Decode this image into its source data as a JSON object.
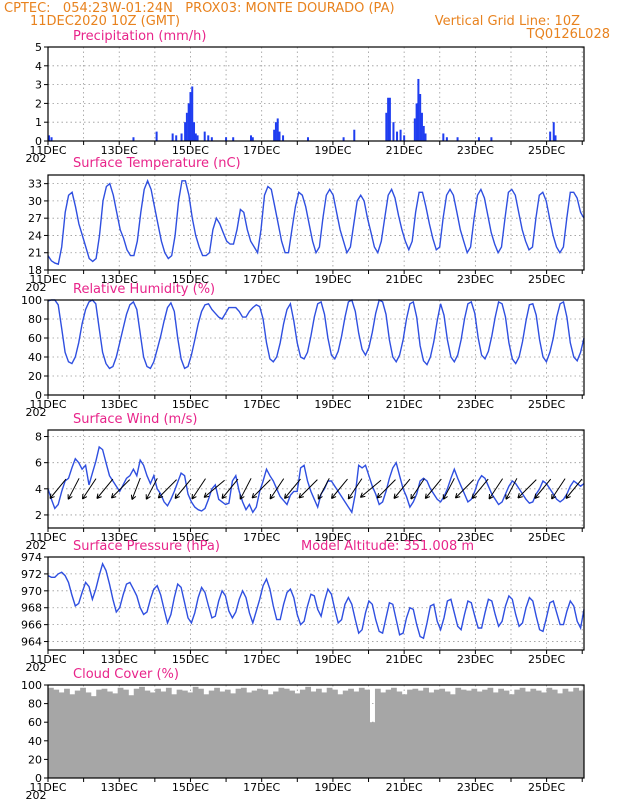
{
  "header": {
    "line1_left": "CPTEC:   054:23W-01:24N   PROX03: MONTE DOURADO (PA)",
    "line2_left": "11DEC2020 10Z (GMT)",
    "line2_right": "Vertical Grid Line: 10Z",
    "line3_right": "TQ0126L028"
  },
  "x_axis": {
    "date_labels": [
      "11DEC",
      "13DEC",
      "15DEC",
      "17DEC",
      "19DEC",
      "21DEC",
      "23DEC",
      "25DEC"
    ],
    "year_fragment": "202"
  },
  "colors": {
    "curve": "#2f4fe0",
    "bars": "#1f3df0",
    "cloud": "#a6a6a6",
    "title": "#e8248a",
    "header": "#e8821e",
    "arrows": "#000000"
  },
  "chart_data": [
    {
      "type": "bar",
      "title": "Precipitation (mm/h)",
      "xunit": "days since 11DEC2020 10Z",
      "ylim": [
        0,
        5
      ],
      "yticks": [
        "0",
        "1",
        "2",
        "3",
        "4",
        "5"
      ],
      "series": [
        {
          "name": "precipitation",
          "points": [
            [
              0.03,
              0.3
            ],
            [
              0.1,
              0.2
            ],
            [
              2.4,
              0.2
            ],
            [
              3.05,
              0.5
            ],
            [
              3.5,
              0.4
            ],
            [
              3.6,
              0.3
            ],
            [
              3.75,
              0.4
            ],
            [
              3.85,
              1.0
            ],
            [
              3.9,
              1.5
            ],
            [
              3.95,
              2.0
            ],
            [
              4.0,
              2.6
            ],
            [
              4.05,
              2.9
            ],
            [
              4.1,
              1.0
            ],
            [
              4.15,
              0.4
            ],
            [
              4.2,
              0.3
            ],
            [
              4.4,
              0.5
            ],
            [
              4.5,
              0.3
            ],
            [
              4.6,
              0.2
            ],
            [
              5.0,
              0.2
            ],
            [
              5.2,
              0.2
            ],
            [
              5.7,
              0.3
            ],
            [
              5.75,
              0.2
            ],
            [
              6.35,
              0.6
            ],
            [
              6.4,
              1.0
            ],
            [
              6.45,
              1.2
            ],
            [
              6.5,
              0.5
            ],
            [
              6.6,
              0.3
            ],
            [
              7.3,
              0.2
            ],
            [
              8.3,
              0.2
            ],
            [
              8.6,
              0.6
            ],
            [
              9.5,
              1.5
            ],
            [
              9.55,
              2.3
            ],
            [
              9.6,
              2.3
            ],
            [
              9.7,
              1.0
            ],
            [
              9.8,
              0.5
            ],
            [
              9.9,
              0.6
            ],
            [
              10.0,
              0.3
            ],
            [
              10.3,
              1.2
            ],
            [
              10.35,
              2.0
            ],
            [
              10.4,
              3.3
            ],
            [
              10.45,
              2.5
            ],
            [
              10.5,
              1.5
            ],
            [
              10.55,
              0.8
            ],
            [
              10.6,
              0.4
            ],
            [
              11.1,
              0.4
            ],
            [
              11.2,
              0.2
            ],
            [
              11.5,
              0.2
            ],
            [
              12.1,
              0.2
            ],
            [
              12.45,
              0.2
            ],
            [
              14.1,
              0.5
            ],
            [
              14.2,
              1.0
            ],
            [
              14.25,
              0.3
            ]
          ]
        }
      ]
    },
    {
      "type": "line",
      "title": "Surface Temperature (nC)",
      "ylim": [
        18,
        34.5
      ],
      "yticks": [
        "18",
        "21",
        "24",
        "27",
        "30",
        "33"
      ],
      "series": [
        {
          "name": "temperature",
          "values": [
            20.5,
            19.6,
            19.2,
            19.0,
            22,
            28,
            31,
            31.5,
            29,
            26,
            24,
            22,
            20,
            19.5,
            20,
            24,
            30,
            32.5,
            33,
            31,
            28,
            25,
            23.5,
            21.5,
            20.5,
            20.5,
            23,
            28,
            32,
            33.5,
            32,
            29,
            26,
            23,
            21,
            20,
            20.5,
            24,
            30,
            33.5,
            33.5,
            31,
            27,
            24,
            22,
            20.5,
            20.5,
            21,
            25,
            27,
            26,
            24.5,
            23,
            22.5,
            22.5,
            25,
            28.5,
            28,
            25,
            23,
            22,
            21,
            25,
            31,
            32.5,
            32,
            29,
            26,
            23,
            21,
            21,
            25,
            29,
            31.5,
            31,
            29,
            26,
            23,
            21,
            22,
            27,
            31,
            32,
            31,
            28,
            25,
            23,
            21,
            22,
            26,
            30,
            31,
            30,
            27,
            24.5,
            22,
            21,
            23,
            27,
            31,
            32,
            30.5,
            27.5,
            25,
            23,
            21.5,
            23,
            28,
            31.5,
            31.5,
            29,
            26,
            23.5,
            21.5,
            22,
            27,
            31,
            32,
            31,
            28,
            25,
            23,
            21,
            22,
            27,
            31,
            32,
            30.5,
            27.5,
            24.5,
            22.5,
            21,
            22,
            27,
            31.5,
            32,
            31,
            28,
            25,
            23,
            21.5,
            22,
            27,
            31,
            31.5,
            30,
            27,
            24,
            22,
            21,
            22,
            27,
            31.5,
            31.5,
            30.5,
            28,
            27
          ]
        }
      ]
    },
    {
      "type": "line",
      "title": "Relative Humidity (%)",
      "ylim": [
        0,
        100
      ],
      "yticks": [
        "0",
        "20",
        "40",
        "60",
        "80",
        "100"
      ],
      "series": [
        {
          "name": "humidity",
          "values": [
            99,
            100,
            100,
            95,
            70,
            45,
            35,
            33,
            40,
            55,
            75,
            90,
            98,
            100,
            96,
            70,
            45,
            33,
            28,
            30,
            40,
            55,
            70,
            85,
            95,
            98,
            90,
            65,
            40,
            30,
            28,
            35,
            48,
            62,
            78,
            92,
            97,
            88,
            60,
            38,
            28,
            30,
            42,
            58,
            75,
            88,
            95,
            96,
            90,
            86,
            82,
            80,
            86,
            92,
            92,
            92,
            88,
            82,
            82,
            88,
            92,
            95,
            93,
            80,
            55,
            38,
            35,
            40,
            55,
            75,
            90,
            96,
            78,
            55,
            40,
            38,
            45,
            62,
            82,
            96,
            98,
            85,
            60,
            42,
            38,
            46,
            62,
            82,
            98,
            100,
            88,
            65,
            48,
            42,
            50,
            66,
            86,
            100,
            98,
            85,
            58,
            40,
            35,
            42,
            58,
            80,
            96,
            98,
            82,
            52,
            36,
            32,
            40,
            56,
            78,
            96,
            84,
            58,
            40,
            35,
            42,
            58,
            80,
            96,
            98,
            86,
            60,
            42,
            38,
            46,
            62,
            82,
            98,
            96,
            82,
            55,
            38,
            33,
            40,
            56,
            78,
            95,
            96,
            84,
            58,
            40,
            35,
            45,
            60,
            82,
            96,
            98,
            82,
            55,
            40,
            36,
            45,
            60
          ]
        }
      ]
    },
    {
      "type": "line",
      "title": "Surface Wind (m/s)",
      "ylim": [
        1,
        8.5
      ],
      "yticks": [
        "2",
        "4",
        "6",
        "8"
      ],
      "series": [
        {
          "name": "wind_speed",
          "values": [
            4.0,
            3.2,
            2.5,
            2.8,
            3.8,
            4.6,
            4.8,
            5.6,
            6.3,
            6.0,
            5.5,
            5.8,
            4.3,
            5.2,
            6.1,
            7.2,
            7.0,
            6.0,
            5.0,
            4.6,
            4.2,
            3.8,
            4.3,
            4.8,
            5.0,
            5.5,
            5.0,
            6.2,
            5.8,
            5.0,
            4.4,
            5.0,
            4.0,
            3.6,
            3.0,
            2.7,
            3.2,
            3.8,
            4.5,
            5.2,
            5.0,
            3.6,
            3.0,
            2.6,
            2.4,
            2.3,
            2.5,
            3.2,
            4.0,
            4.3,
            3.2,
            3.0,
            2.8,
            2.9,
            4.6,
            5.0,
            3.8,
            3.0,
            2.4,
            2.8,
            2.2,
            2.6,
            3.8,
            4.6,
            5.5,
            5.0,
            4.6,
            4.0,
            3.4,
            3.1,
            2.8,
            3.5,
            3.8,
            3.8,
            5.6,
            5.8,
            4.6,
            3.8,
            3.2,
            2.6,
            3.6,
            4.0,
            4.6,
            4.6,
            4.2,
            3.8,
            3.4,
            3.0,
            2.6,
            2.2,
            3.6,
            5.8,
            5.6,
            5.8,
            5.0,
            4.2,
            3.6,
            2.8,
            3.0,
            3.8,
            4.8,
            5.6,
            6.0,
            5.0,
            4.0,
            3.4,
            2.6,
            3.0,
            3.6,
            4.6,
            4.8,
            4.6,
            4.0,
            3.6,
            3.2,
            3.0,
            3.4,
            4.0,
            4.8,
            5.5,
            4.8,
            4.2,
            3.6,
            3.0,
            3.2,
            3.8,
            4.6,
            5.0,
            4.8,
            4.2,
            3.6,
            3.2,
            2.8,
            3.0,
            3.6,
            4.2,
            4.6,
            4.4,
            4.0,
            3.6,
            3.2,
            2.9,
            3.0,
            3.6,
            4.0,
            4.6,
            4.4,
            4.0,
            3.6,
            3.2,
            3.0,
            3.2,
            3.6,
            4.2,
            4.6,
            4.4,
            4.2,
            4.4
          ]
        }
      ],
      "wind_arrows_deg": [
        60,
        70,
        65,
        60,
        55,
        75,
        70,
        55,
        60,
        65,
        50,
        60,
        70,
        55,
        65,
        60,
        55,
        70,
        60,
        65,
        50,
        55,
        60,
        65,
        60,
        70,
        55,
        60,
        65,
        70,
        55,
        60,
        65,
        60
      ]
    },
    {
      "type": "line",
      "title": "Surface Pressure (hPa)",
      "annotation": "Model Altitude: 351.008  m",
      "ylim": [
        963,
        974
      ],
      "yticks": [
        "964",
        "966",
        "968",
        "970",
        "972",
        "974"
      ],
      "series": [
        {
          "name": "pressure",
          "values": [
            971.8,
            971.6,
            971.6,
            972.0,
            972.2,
            971.8,
            971.0,
            969.5,
            968.2,
            968.5,
            969.8,
            971.0,
            970.5,
            969.0,
            970.2,
            971.8,
            973.2,
            972.4,
            970.8,
            969.0,
            967.5,
            968.0,
            969.5,
            970.8,
            971.0,
            970.2,
            969.4,
            968.0,
            967.2,
            967.5,
            969.0,
            970.2,
            970.6,
            969.5,
            967.8,
            966.2,
            967.2,
            969.2,
            970.8,
            970.4,
            968.6,
            966.8,
            966.2,
            967.4,
            969.2,
            970.4,
            969.8,
            968.2,
            966.8,
            967.0,
            968.8,
            970.0,
            969.4,
            967.6,
            966.8,
            967.5,
            969.0,
            970.0,
            969.2,
            967.4,
            966.2,
            967.6,
            969.0,
            970.6,
            971.4,
            970.2,
            968.2,
            966.6,
            966.6,
            968.4,
            969.8,
            970.2,
            969.2,
            967.2,
            966.0,
            966.4,
            968.2,
            969.6,
            969.4,
            967.8,
            967.0,
            968.8,
            970.2,
            969.6,
            967.8,
            966.2,
            966.6,
            968.4,
            969.2,
            968.4,
            966.6,
            965.0,
            965.4,
            967.4,
            968.8,
            968.4,
            966.6,
            965.2,
            965.0,
            966.8,
            968.6,
            968.4,
            966.6,
            964.8,
            965.0,
            966.8,
            968.0,
            967.8,
            966.0,
            964.6,
            964.4,
            966.2,
            968.2,
            968.4,
            966.4,
            965.4,
            966.8,
            968.8,
            969.0,
            967.4,
            965.8,
            965.4,
            967.2,
            968.8,
            968.6,
            967.0,
            965.6,
            965.6,
            967.4,
            969.0,
            968.8,
            967.2,
            965.8,
            966.4,
            968.2,
            969.4,
            969.0,
            967.2,
            965.8,
            966.2,
            968.0,
            969.2,
            968.8,
            967.0,
            965.4,
            965.2,
            966.8,
            968.6,
            968.8,
            967.4,
            966.0,
            966.0,
            967.6,
            968.8,
            968.2,
            966.4,
            965.6,
            967.8
          ]
        }
      ]
    },
    {
      "type": "bar",
      "title": "Cloud Cover (%)",
      "ylim": [
        0,
        100
      ],
      "yticks": [
        "0",
        "20",
        "40",
        "60",
        "80",
        "100"
      ],
      "series": [
        {
          "name": "cloud_cover",
          "values": [
            97,
            95,
            92,
            96,
            90,
            94,
            97,
            92,
            88,
            95,
            96,
            93,
            91,
            97,
            95,
            89,
            96,
            98,
            94,
            92,
            96,
            93,
            97,
            90,
            95,
            94,
            92,
            98,
            96,
            90,
            94,
            97,
            93,
            95,
            91,
            96,
            97,
            92,
            94,
            96,
            95,
            90,
            93,
            97,
            96,
            94,
            91,
            95,
            98,
            93,
            96,
            92,
            97,
            95,
            90,
            94,
            96,
            93,
            97,
            95,
            60,
            96,
            92,
            95,
            97,
            93,
            90,
            95,
            96,
            94,
            97,
            92,
            95,
            96,
            93,
            90,
            97,
            95,
            94,
            96,
            93,
            95,
            97,
            92,
            96,
            94,
            90,
            95,
            97,
            93,
            96,
            94,
            92,
            97,
            95,
            91,
            96,
            93,
            97,
            94
          ]
        }
      ]
    }
  ]
}
